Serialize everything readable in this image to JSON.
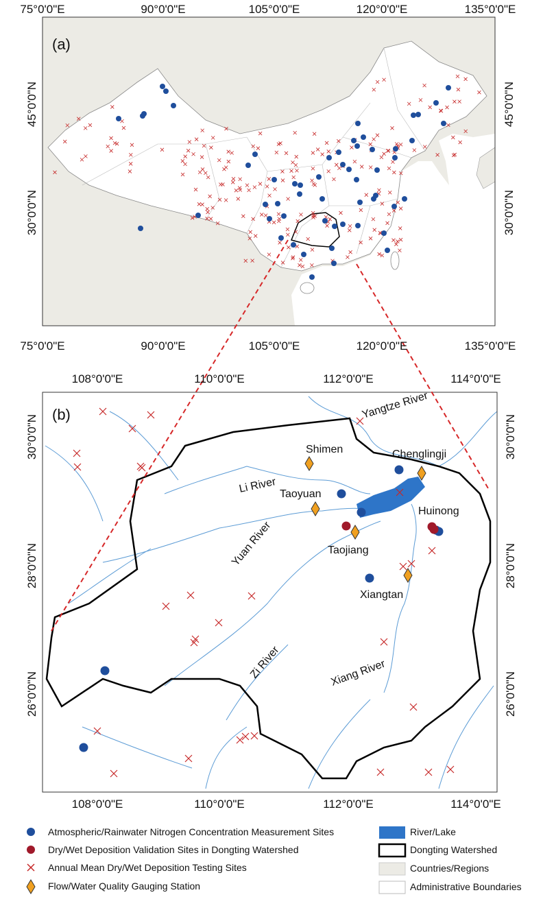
{
  "panel_a": {
    "label": "(a)",
    "x_ticks": [
      "75°0'0\"E",
      "90°0'0\"E",
      "105°0'0\"E",
      "120°0'0\"E",
      "135°0'0\"E"
    ],
    "y_ticks": [
      "45°0'0\"N",
      "30°0'0\"N"
    ]
  },
  "panel_b": {
    "label": "(b)",
    "x_ticks": [
      "108°0'0\"E",
      "110°0'0\"E",
      "112°0'0\"E",
      "114°0'0\"E"
    ],
    "y_ticks": [
      "30°0'0\"N",
      "28°0'0\"N",
      "26°0'0\"N"
    ],
    "places": [
      "Shimen",
      "Chenglingji",
      "Taoyuan",
      "Huinong",
      "Taojiang",
      "Xiangtan"
    ],
    "rivers": [
      "Yangtze River",
      "Li River",
      "Yuan River",
      "Zi River",
      "Xiang River"
    ]
  },
  "legend": {
    "items": [
      "Atmospheric/Rainwater Nitrogen Concentration Measurement Sites",
      "Dry/Wet Deposition Validation Sites in Dongting Watershed",
      "Annual Mean Dry/Wet Deposition Testing Sites",
      "Flow/Water Quality Gauging Station",
      "River/Lake",
      "Dongting Watershed",
      "Countries/Regions",
      "Administrative Boundaries"
    ]
  }
}
